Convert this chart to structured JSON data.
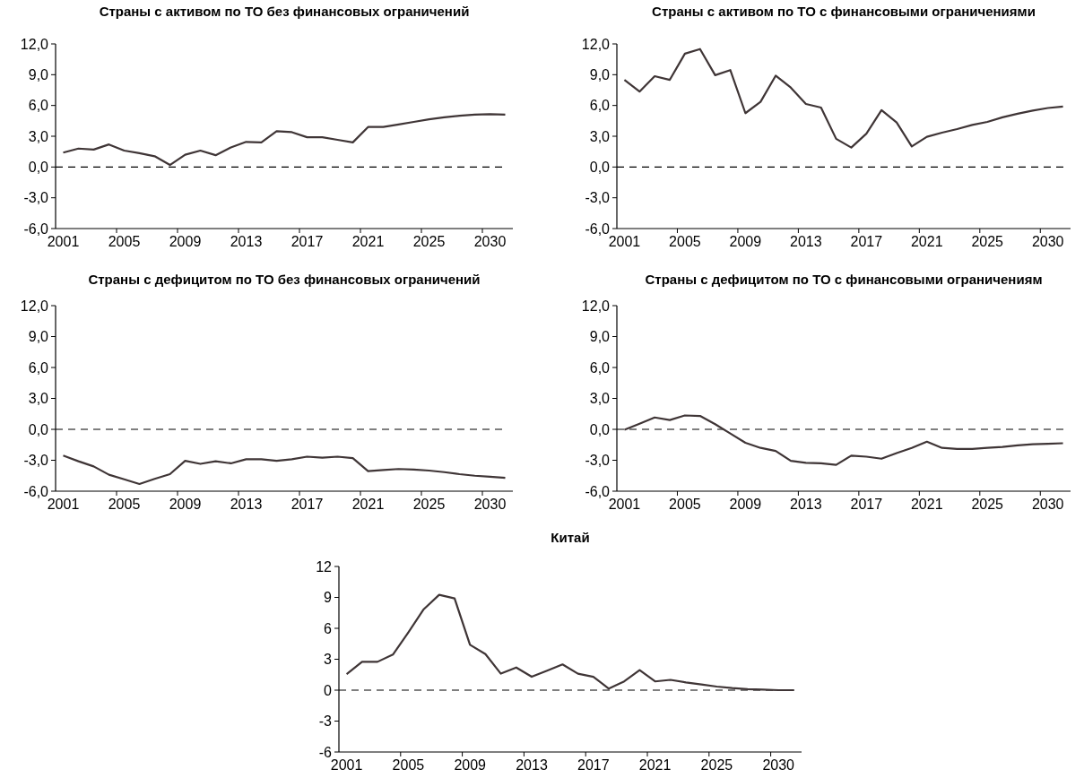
{
  "chart_data": [
    {
      "type": "line",
      "title": "Страны с активом по ТО без финансовых ограничений",
      "categories": [
        "2001",
        null,
        null,
        null,
        "2005",
        null,
        null,
        null,
        "2009",
        null,
        null,
        null,
        "2013",
        null,
        null,
        null,
        "2017",
        null,
        null,
        null,
        "2021",
        null,
        null,
        null,
        "2025",
        null,
        null,
        null,
        "2030",
        null
      ],
      "series": [
        {
          "color": "#3f3536",
          "values": [
            1.4,
            1.8,
            1.7,
            2.2,
            1.6,
            1.35,
            1.05,
            0.2,
            1.2,
            1.6,
            1.15,
            1.9,
            2.45,
            2.4,
            3.5,
            3.4,
            2.9,
            2.9,
            2.65,
            2.4,
            3.9,
            3.9,
            4.15,
            4.4,
            4.65,
            4.85,
            5.0,
            5.1,
            5.15,
            5.1
          ]
        }
      ],
      "ylim": [
        -6,
        12
      ],
      "yticks": [
        {
          "value": -6,
          "label": "-6,0"
        },
        {
          "value": -3,
          "label": "-3,0"
        },
        {
          "value": 0,
          "label": "0,0"
        },
        {
          "value": 3,
          "label": "3,0"
        },
        {
          "value": 6,
          "label": "6,0"
        },
        {
          "value": 9,
          "label": "9,0"
        },
        {
          "value": 12,
          "label": "12,0"
        }
      ],
      "ref_lines": [
        {
          "axis": "y",
          "value": 0,
          "color": "#000000",
          "line_style": "dashed"
        }
      ]
    },
    {
      "type": "line",
      "title": "Страны с активом по ТО с финансовыми ограничениями",
      "categories": [
        "2001",
        null,
        null,
        null,
        "2005",
        null,
        null,
        null,
        "2009",
        null,
        null,
        null,
        "2013",
        null,
        null,
        null,
        "2017",
        null,
        null,
        null,
        "2021",
        null,
        null,
        null,
        "2025",
        null,
        null,
        null,
        "2030",
        null
      ],
      "series": [
        {
          "color": "#3f3536",
          "values": [
            8.5,
            7.35,
            8.85,
            8.5,
            11.05,
            11.5,
            8.95,
            9.45,
            5.25,
            6.35,
            8.9,
            7.75,
            6.15,
            5.8,
            2.75,
            1.9,
            3.25,
            5.55,
            4.35,
            2.0,
            2.95,
            3.35,
            3.7,
            4.1,
            4.4,
            4.85,
            5.2,
            5.5,
            5.75,
            5.9
          ]
        }
      ],
      "ylim": [
        -6,
        12
      ],
      "yticks": [
        {
          "value": -6,
          "label": "-6,0"
        },
        {
          "value": -3,
          "label": "-3,0"
        },
        {
          "value": 0,
          "label": "0,0"
        },
        {
          "value": 3,
          "label": "3,0"
        },
        {
          "value": 6,
          "label": "6,0"
        },
        {
          "value": 9,
          "label": "9,0"
        },
        {
          "value": 12,
          "label": "12,0"
        }
      ],
      "ref_lines": [
        {
          "axis": "y",
          "value": 0,
          "color": "#000000",
          "line_style": "dashed"
        }
      ]
    },
    {
      "type": "line",
      "title": "Страны с дефицитом по ТО без финансовых ограничений",
      "categories": [
        "2001",
        null,
        null,
        null,
        "2005",
        null,
        null,
        null,
        "2009",
        null,
        null,
        null,
        "2013",
        null,
        null,
        null,
        "2017",
        null,
        null,
        null,
        "2021",
        null,
        null,
        null,
        "2025",
        null,
        null,
        null,
        "2030",
        null
      ],
      "series": [
        {
          "color": "#3f3536",
          "values": [
            -2.55,
            -3.1,
            -3.6,
            -4.4,
            -4.85,
            -5.3,
            -4.8,
            -4.35,
            -3.05,
            -3.35,
            -3.1,
            -3.3,
            -2.9,
            -2.9,
            -3.05,
            -2.9,
            -2.65,
            -2.75,
            -2.65,
            -2.8,
            -4.05,
            -3.95,
            -3.85,
            -3.9,
            -4.0,
            -4.15,
            -4.35,
            -4.5,
            -4.6,
            -4.7
          ]
        }
      ],
      "ylim": [
        -6,
        12
      ],
      "yticks": [
        {
          "value": -6,
          "label": "-6,0"
        },
        {
          "value": -3,
          "label": "-3,0"
        },
        {
          "value": 0,
          "label": "0,0"
        },
        {
          "value": 3,
          "label": "3,0"
        },
        {
          "value": 6,
          "label": "6,0"
        },
        {
          "value": 9,
          "label": "9,0"
        },
        {
          "value": 12,
          "label": "12,0"
        }
      ],
      "ref_lines": [
        {
          "axis": "y",
          "value": 0,
          "color": "#000000",
          "line_style": "dashed"
        }
      ]
    },
    {
      "type": "line",
      "title": "Страны с дефицитом по ТО с финансовыми ограничениям",
      "categories": [
        "2001",
        null,
        null,
        null,
        "2005",
        null,
        null,
        null,
        "2009",
        null,
        null,
        null,
        "2013",
        null,
        null,
        null,
        "2017",
        null,
        null,
        null,
        "2021",
        null,
        null,
        null,
        "2025",
        null,
        null,
        null,
        "2030",
        null
      ],
      "series": [
        {
          "color": "#3f3536",
          "values": [
            -0.05,
            0.55,
            1.15,
            0.9,
            1.35,
            1.3,
            0.5,
            -0.4,
            -1.3,
            -1.8,
            -2.1,
            -3.05,
            -3.25,
            -3.3,
            -3.45,
            -2.55,
            -2.65,
            -2.85,
            -2.3,
            -1.8,
            -1.2,
            -1.8,
            -1.9,
            -1.9,
            -1.8,
            -1.7,
            -1.55,
            -1.45,
            -1.4,
            -1.35
          ]
        }
      ],
      "ylim": [
        -6,
        12
      ],
      "yticks": [
        {
          "value": -6,
          "label": "-6,0"
        },
        {
          "value": -3,
          "label": "-3,0"
        },
        {
          "value": 0,
          "label": "0,0"
        },
        {
          "value": 3,
          "label": "3,0"
        },
        {
          "value": 6,
          "label": "6,0"
        },
        {
          "value": 9,
          "label": "9,0"
        },
        {
          "value": 12,
          "label": "12,0"
        }
      ],
      "ref_lines": [
        {
          "axis": "y",
          "value": 0,
          "color": "#000000",
          "line_style": "dashed"
        }
      ]
    },
    {
      "type": "line",
      "title": "Китай",
      "categories": [
        "2001",
        null,
        null,
        null,
        "2005",
        null,
        null,
        null,
        "2009",
        null,
        null,
        null,
        "2013",
        null,
        null,
        null,
        "2017",
        null,
        null,
        null,
        "2021",
        null,
        null,
        null,
        "2025",
        null,
        null,
        null,
        "2030",
        null
      ],
      "series": [
        {
          "color": "#3f3536",
          "values": [
            1.55,
            2.75,
            2.75,
            3.45,
            5.6,
            7.85,
            9.25,
            8.9,
            4.4,
            3.5,
            1.6,
            2.2,
            1.3,
            1.9,
            2.5,
            1.6,
            1.3,
            0.15,
            0.85,
            1.95,
            0.85,
            1.0,
            0.75,
            0.55,
            0.35,
            0.2,
            0.1,
            0.05,
            0.0,
            0.0
          ]
        }
      ],
      "ylim": [
        -6,
        12
      ],
      "yticks": [
        -6,
        -3,
        0,
        3,
        6,
        9,
        12
      ],
      "ref_lines": [
        {
          "axis": "y",
          "value": 0,
          "color": "#000000",
          "line_style": "dashed"
        }
      ]
    }
  ]
}
